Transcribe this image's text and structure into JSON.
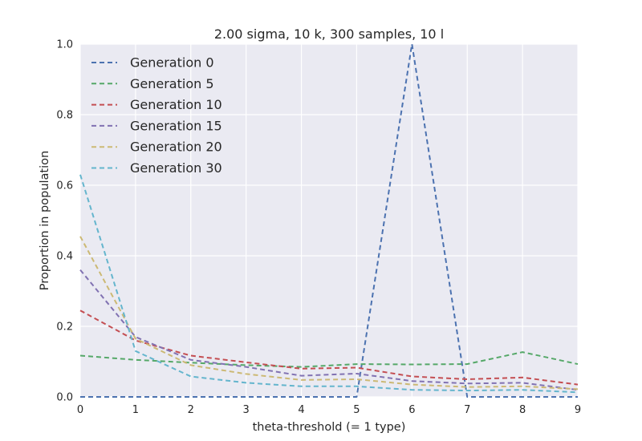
{
  "chart_data": {
    "type": "line",
    "title": "2.00 sigma, 10 k, 300 samples, 10 l",
    "xlabel": "theta-threshold (= 1 type)",
    "ylabel": "Proportion in population",
    "x": [
      0,
      1,
      2,
      3,
      4,
      5,
      6,
      7,
      8,
      9
    ],
    "xlim": [
      0,
      9
    ],
    "ylim": [
      0,
      1.0
    ],
    "xticks": [
      "0",
      "1",
      "2",
      "3",
      "4",
      "5",
      "6",
      "7",
      "8",
      "9"
    ],
    "yticks": [
      "0.0",
      "0.2",
      "0.4",
      "0.6",
      "0.8",
      "1.0"
    ],
    "grid": true,
    "legend_position": "top-left",
    "line_style": "dashed",
    "series": [
      {
        "name": "Generation 0",
        "color": "#4c72b0",
        "values": [
          0,
          0,
          0,
          0,
          0,
          0,
          1.0,
          0,
          0,
          0
        ]
      },
      {
        "name": "Generation 5",
        "color": "#55a868",
        "values": [
          0.117,
          0.105,
          0.097,
          0.09,
          0.085,
          0.093,
          0.092,
          0.093,
          0.127,
          0.093
        ]
      },
      {
        "name": "Generation 10",
        "color": "#c44e52",
        "values": [
          0.245,
          0.16,
          0.117,
          0.098,
          0.08,
          0.083,
          0.058,
          0.05,
          0.055,
          0.035
        ]
      },
      {
        "name": "Generation 15",
        "color": "#8172b2",
        "values": [
          0.36,
          0.17,
          0.105,
          0.085,
          0.06,
          0.066,
          0.045,
          0.038,
          0.04,
          0.02
        ]
      },
      {
        "name": "Generation 20",
        "color": "#ccb974",
        "values": [
          0.455,
          0.165,
          0.09,
          0.065,
          0.048,
          0.05,
          0.035,
          0.028,
          0.03,
          0.022
        ]
      },
      {
        "name": "Generation 30",
        "color": "#64b5cd",
        "values": [
          0.63,
          0.13,
          0.058,
          0.04,
          0.03,
          0.03,
          0.02,
          0.018,
          0.02,
          0.013
        ]
      }
    ]
  }
}
